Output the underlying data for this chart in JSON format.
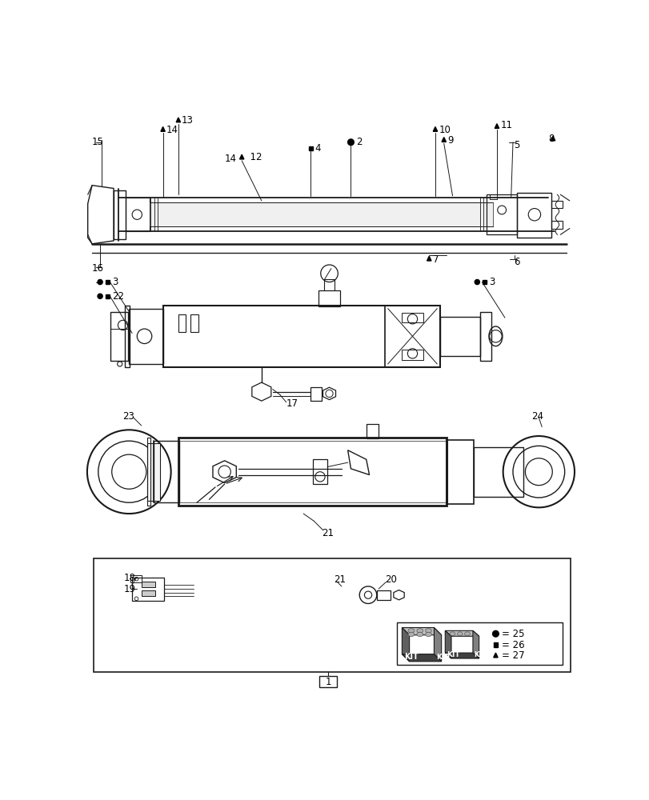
{
  "bg_color": "#ffffff",
  "line_color": "#1a1a1a",
  "lw": 0.9
}
